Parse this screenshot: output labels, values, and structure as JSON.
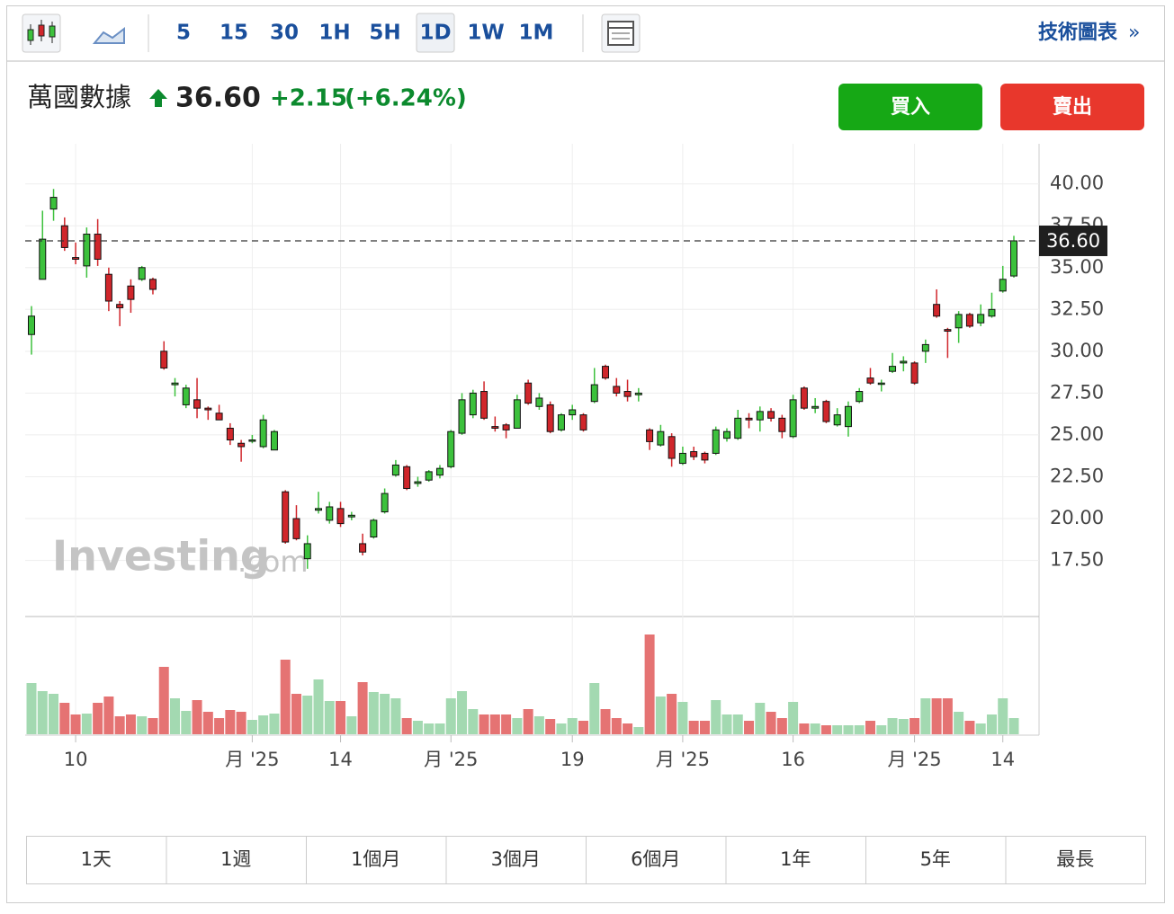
{
  "toolbar": {
    "intervals": [
      "5",
      "15",
      "30",
      "1H",
      "5H",
      "1D",
      "1W",
      "1M"
    ],
    "active": "1D",
    "link": "技術圖表",
    "link_arrow": "»"
  },
  "header": {
    "name": "萬國數據",
    "price": "36.60",
    "change": "+2.15",
    "change_percent": "(+6.24%)"
  },
  "buttons": {
    "buy": "買入",
    "sell": "賣出"
  },
  "watermark": {
    "brand": "Investing",
    "suffix": ".com"
  },
  "ranges": [
    "1天",
    "1週",
    "1個月",
    "3個月",
    "6個月",
    "1年",
    "5年",
    "最長"
  ],
  "chart_data": {
    "type": "candlestick",
    "categories": [
      null,
      null,
      null,
      null,
      "10",
      null,
      null,
      null,
      null,
      null,
      null,
      null,
      null,
      null,
      null,
      null,
      null,
      null,
      null,
      null,
      "月 '25",
      null,
      null,
      null,
      null,
      null,
      null,
      null,
      "14",
      null,
      null,
      null,
      null,
      null,
      null,
      null,
      null,
      null,
      "月 '25",
      null,
      null,
      null,
      null,
      null,
      null,
      null,
      null,
      null,
      null,
      "19",
      null,
      null,
      null,
      null,
      null,
      null,
      null,
      null,
      null,
      "月 '25",
      null,
      null,
      null,
      null,
      null,
      null,
      null,
      null,
      null,
      "16",
      null,
      null,
      null,
      null,
      null,
      null,
      null,
      null,
      null,
      null,
      "月 '25",
      null,
      null,
      null,
      null,
      null,
      null,
      null,
      "14",
      null
    ],
    "open": [
      31.0,
      34.3,
      38.5,
      37.5,
      35.6,
      35.1,
      37.0,
      34.6,
      32.8,
      33.9,
      34.3,
      34.3,
      30.0,
      28.0,
      26.8,
      27.1,
      26.6,
      26.3,
      25.4,
      24.5,
      24.7,
      24.3,
      24.1,
      21.6,
      20.0,
      17.6,
      20.5,
      19.9,
      20.6,
      20.1,
      18.5,
      18.9,
      20.4,
      22.6,
      23.1,
      22.1,
      22.3,
      22.6,
      23.1,
      25.1,
      26.2,
      27.6,
      25.5,
      25.6,
      25.4,
      28.1,
      26.7,
      26.8,
      25.3,
      26.2,
      26.2,
      27.0,
      29.1,
      27.9,
      27.6,
      27.4,
      25.3,
      24.4,
      24.9,
      23.3,
      24.0,
      23.9,
      23.9,
      24.8,
      24.8,
      26.0,
      25.9,
      26.4,
      26.0,
      24.9,
      27.8,
      26.6,
      27.0,
      25.6,
      25.5,
      27.0,
      28.4,
      28.1,
      28.8,
      29.3,
      29.3,
      30.0,
      32.8,
      31.3,
      31.4,
      32.2,
      31.7,
      32.1,
      33.6,
      34.5
    ],
    "high": [
      32.7,
      38.4,
      39.7,
      38.0,
      36.5,
      37.4,
      37.9,
      35.0,
      33.0,
      34.3,
      35.1,
      34.4,
      30.6,
      28.4,
      28.0,
      28.4,
      26.7,
      26.8,
      25.7,
      24.7,
      25.0,
      26.2,
      25.3,
      21.7,
      20.8,
      19.0,
      21.6,
      21.0,
      21.0,
      20.4,
      19.1,
      20.0,
      21.8,
      23.5,
      23.2,
      22.5,
      22.9,
      23.2,
      25.3,
      27.5,
      27.7,
      28.2,
      26.1,
      25.7,
      27.4,
      28.3,
      27.5,
      27.0,
      26.3,
      26.8,
      26.3,
      29.0,
      29.2,
      28.4,
      28.3,
      27.8,
      25.4,
      25.6,
      25.1,
      24.3,
      24.3,
      24.0,
      25.5,
      25.4,
      26.5,
      26.3,
      26.7,
      26.6,
      26.2,
      27.4,
      27.9,
      27.2,
      27.1,
      26.6,
      27.0,
      27.8,
      29.0,
      28.3,
      29.9,
      29.7,
      29.4,
      30.7,
      33.7,
      31.4,
      32.4,
      32.3,
      32.8,
      33.5,
      35.1,
      36.9
    ],
    "low": [
      29.8,
      34.3,
      37.8,
      36.0,
      35.2,
      34.4,
      35.1,
      32.4,
      31.5,
      32.3,
      34.2,
      33.4,
      28.9,
      27.3,
      26.6,
      26.0,
      25.9,
      25.9,
      24.4,
      23.4,
      24.5,
      24.2,
      24.1,
      18.5,
      18.7,
      17.0,
      20.3,
      19.7,
      19.5,
      19.9,
      17.8,
      18.8,
      20.3,
      22.5,
      21.7,
      21.9,
      22.2,
      22.4,
      23.0,
      25.0,
      26.0,
      25.9,
      25.2,
      24.8,
      25.4,
      26.8,
      26.5,
      25.1,
      25.2,
      25.9,
      25.2,
      26.9,
      28.3,
      27.3,
      27.0,
      27.0,
      24.1,
      24.3,
      23.1,
      23.2,
      23.5,
      23.3,
      23.8,
      24.6,
      24.7,
      25.4,
      25.2,
      25.8,
      24.8,
      24.8,
      26.5,
      26.3,
      25.7,
      25.5,
      24.9,
      26.9,
      28.0,
      27.6,
      28.7,
      28.8,
      28.0,
      29.3,
      32.0,
      29.6,
      30.5,
      31.4,
      31.5,
      32.0,
      33.5,
      34.4
    ],
    "close": [
      32.1,
      36.7,
      39.2,
      36.2,
      35.5,
      37.0,
      35.5,
      33.0,
      32.6,
      33.1,
      35.0,
      33.7,
      29.0,
      28.1,
      27.8,
      26.6,
      26.5,
      25.9,
      24.7,
      24.3,
      24.7,
      25.9,
      25.2,
      18.6,
      18.8,
      18.5,
      20.6,
      20.7,
      19.7,
      20.2,
      18.0,
      19.9,
      21.5,
      23.2,
      21.8,
      22.2,
      22.8,
      23.0,
      25.2,
      27.1,
      27.5,
      26.0,
      25.4,
      25.3,
      27.1,
      26.9,
      27.2,
      25.2,
      26.2,
      26.5,
      25.3,
      28.0,
      28.4,
      27.5,
      27.3,
      27.5,
      24.6,
      25.2,
      23.6,
      23.9,
      23.7,
      23.5,
      25.3,
      25.2,
      26.0,
      25.9,
      26.4,
      26.0,
      25.2,
      27.1,
      26.6,
      26.7,
      25.8,
      26.2,
      26.7,
      27.6,
      28.1,
      28.1,
      29.1,
      29.4,
      28.1,
      30.4,
      32.1,
      31.2,
      32.2,
      31.5,
      32.2,
      32.5,
      34.3,
      36.6
    ],
    "volume": {
      "values": [
        57,
        48,
        45,
        35,
        22,
        23,
        35,
        42,
        20,
        22,
        20,
        18,
        75,
        40,
        26,
        38,
        25,
        18,
        27,
        25,
        16,
        21,
        23,
        83,
        45,
        43,
        61,
        37,
        37,
        20,
        58,
        47,
        45,
        40,
        18,
        15,
        12,
        12,
        40,
        48,
        28,
        22,
        22,
        22,
        18,
        28,
        20,
        17,
        12,
        18,
        15,
        57,
        28,
        18,
        12,
        8,
        111,
        42,
        45,
        36,
        15,
        15,
        38,
        22,
        22,
        15,
        35,
        25,
        18,
        36,
        12,
        12,
        10,
        10,
        10,
        10,
        15,
        10,
        18,
        17,
        18,
        40,
        40,
        40,
        25,
        15,
        12,
        22,
        40,
        18
      ],
      "ylim": [
        0,
        130
      ],
      "up_color": "#a3d9b1",
      "down_color": "#e57373"
    },
    "ylim": [
      14.2,
      42.4
    ],
    "yticks": [
      {
        "value": 17.5,
        "label": "17.50"
      },
      {
        "value": 20,
        "label": "20.00"
      },
      {
        "value": 22.5,
        "label": "22.50"
      },
      {
        "value": 25,
        "label": "25.00"
      },
      {
        "value": 27.5,
        "label": "27.50"
      },
      {
        "value": 30,
        "label": "30.00"
      },
      {
        "value": 32.5,
        "label": "32.50"
      },
      {
        "value": 35,
        "label": "35.00"
      },
      {
        "value": 37.5,
        "label": "37.50"
      },
      {
        "value": 40,
        "label": "40.00"
      }
    ],
    "last_price": {
      "value": 36.6,
      "label": "36.60"
    },
    "up_color": "#3cc13c",
    "down_color": "#d0262b",
    "grid": true
  }
}
